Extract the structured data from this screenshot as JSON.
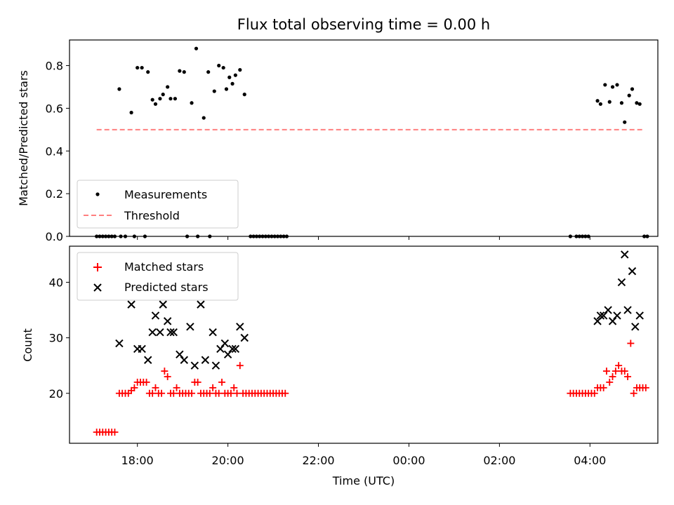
{
  "title": "Flux total observing time = 0.00 h",
  "chart_data": [
    {
      "type": "scatter",
      "panel": "top",
      "ylabel": "Matched/Predicted stars",
      "ylim": [
        0,
        0.92
      ],
      "yticks": [
        0.0,
        0.2,
        0.4,
        0.6,
        0.8
      ],
      "ytick_labels": [
        "0.0",
        "0.2",
        "0.4",
        "0.6",
        "0.8"
      ],
      "legend": {
        "placement": "lower-left",
        "entries": [
          "Measurements",
          "Threshold"
        ]
      },
      "series": [
        {
          "name": "Measurements",
          "marker": "dot",
          "color": "#000000",
          "points": [
            [
              "17:06",
              0
            ],
            [
              "17:10",
              0
            ],
            [
              "17:14",
              0
            ],
            [
              "17:18",
              0
            ],
            [
              "17:22",
              0
            ],
            [
              "17:26",
              0
            ],
            [
              "17:30",
              0
            ],
            [
              "17:36",
              0.69
            ],
            [
              "17:38",
              0
            ],
            [
              "17:44",
              0
            ],
            [
              "17:52",
              0.58
            ],
            [
              "17:56",
              0
            ],
            [
              "18:00",
              0.79
            ],
            [
              "18:06",
              0.79
            ],
            [
              "18:10",
              0
            ],
            [
              "18:14",
              0.77
            ],
            [
              "18:20",
              0.64
            ],
            [
              "18:24",
              0.62
            ],
            [
              "18:30",
              0.645
            ],
            [
              "18:34",
              0.665
            ],
            [
              "18:40",
              0.7
            ],
            [
              "18:44",
              0.645
            ],
            [
              "18:50",
              0.645
            ],
            [
              "18:56",
              0.775
            ],
            [
              "19:02",
              0.77
            ],
            [
              "19:06",
              0
            ],
            [
              "19:12",
              0.625
            ],
            [
              "19:18",
              0.88
            ],
            [
              "19:20",
              0
            ],
            [
              "19:28",
              0.555
            ],
            [
              "19:34",
              0.77
            ],
            [
              "19:36",
              0
            ],
            [
              "19:42",
              0.68
            ],
            [
              "19:48",
              0.8
            ],
            [
              "19:54",
              0.79
            ],
            [
              "19:58",
              0.69
            ],
            [
              "20:02",
              0.745
            ],
            [
              "20:06",
              0.715
            ],
            [
              "20:10",
              0.755
            ],
            [
              "20:16",
              0.78
            ],
            [
              "20:22",
              0.665
            ],
            [
              "20:30",
              0
            ],
            [
              "20:34",
              0
            ],
            [
              "20:38",
              0
            ],
            [
              "20:42",
              0
            ],
            [
              "20:46",
              0
            ],
            [
              "20:50",
              0
            ],
            [
              "20:54",
              0
            ],
            [
              "20:58",
              0
            ],
            [
              "21:02",
              0
            ],
            [
              "21:06",
              0
            ],
            [
              "21:10",
              0
            ],
            [
              "21:14",
              0
            ],
            [
              "21:18",
              0
            ],
            [
              "03:34",
              0
            ],
            [
              "03:42",
              0
            ],
            [
              "03:46",
              0
            ],
            [
              "03:50",
              0
            ],
            [
              "03:54",
              0
            ],
            [
              "03:58",
              0
            ],
            [
              "04:10",
              0.635
            ],
            [
              "04:14",
              0.62
            ],
            [
              "04:20",
              0.71
            ],
            [
              "04:26",
              0.63
            ],
            [
              "04:30",
              0.7
            ],
            [
              "04:36",
              0.71
            ],
            [
              "04:42",
              0.625
            ],
            [
              "04:46",
              0.535
            ],
            [
              "04:52",
              0.66
            ],
            [
              "04:56",
              0.69
            ],
            [
              "05:02",
              0.625
            ],
            [
              "05:06",
              0.62
            ],
            [
              "05:12",
              0
            ],
            [
              "05:16",
              0
            ]
          ]
        },
        {
          "name": "Threshold",
          "style": "dashed",
          "color": "#ff7f7f",
          "points": [
            [
              "17:06",
              0.5
            ],
            [
              "05:12",
              0.5
            ]
          ]
        }
      ]
    },
    {
      "type": "scatter",
      "panel": "bottom",
      "xlabel": "Time (UTC)",
      "ylabel": "Count",
      "xlim": [
        "16:30",
        "05:30"
      ],
      "xticks": [
        "18:00",
        "20:00",
        "22:00",
        "00:00",
        "02:00",
        "04:00"
      ],
      "ylim": [
        11,
        46.5
      ],
      "yticks": [
        20,
        30,
        40
      ],
      "ytick_labels": [
        "20",
        "30",
        "40"
      ],
      "legend": {
        "placement": "upper-left",
        "entries": [
          "Matched stars",
          "Predicted stars"
        ]
      },
      "series": [
        {
          "name": "Matched stars",
          "marker": "plus",
          "color": "#ff0000",
          "points": [
            [
              "17:06",
              13
            ],
            [
              "17:10",
              13
            ],
            [
              "17:14",
              13
            ],
            [
              "17:18",
              13
            ],
            [
              "17:22",
              13
            ],
            [
              "17:26",
              13
            ],
            [
              "17:30",
              13
            ],
            [
              "17:36",
              20
            ],
            [
              "17:40",
              20
            ],
            [
              "17:44",
              20
            ],
            [
              "17:48",
              20
            ],
            [
              "17:52",
              20.5
            ],
            [
              "17:56",
              21
            ],
            [
              "18:00",
              22
            ],
            [
              "18:04",
              22
            ],
            [
              "18:08",
              22
            ],
            [
              "18:12",
              22
            ],
            [
              "18:16",
              20
            ],
            [
              "18:20",
              20
            ],
            [
              "18:24",
              21
            ],
            [
              "18:28",
              20
            ],
            [
              "18:32",
              20
            ],
            [
              "18:36",
              24
            ],
            [
              "18:40",
              23
            ],
            [
              "18:44",
              20
            ],
            [
              "18:48",
              20
            ],
            [
              "18:52",
              21
            ],
            [
              "18:56",
              20
            ],
            [
              "19:00",
              20
            ],
            [
              "19:04",
              20
            ],
            [
              "19:08",
              20
            ],
            [
              "19:12",
              20
            ],
            [
              "19:16",
              22
            ],
            [
              "19:20",
              22
            ],
            [
              "19:24",
              20
            ],
            [
              "19:28",
              20
            ],
            [
              "19:32",
              20
            ],
            [
              "19:36",
              20
            ],
            [
              "19:40",
              21
            ],
            [
              "19:44",
              20
            ],
            [
              "19:48",
              20
            ],
            [
              "19:52",
              22
            ],
            [
              "19:56",
              20
            ],
            [
              "20:00",
              20
            ],
            [
              "20:04",
              20
            ],
            [
              "20:08",
              21
            ],
            [
              "20:12",
              20
            ],
            [
              "20:16",
              25
            ],
            [
              "20:20",
              20
            ],
            [
              "20:24",
              20
            ],
            [
              "20:28",
              20
            ],
            [
              "20:32",
              20
            ],
            [
              "20:36",
              20
            ],
            [
              "20:40",
              20
            ],
            [
              "20:44",
              20
            ],
            [
              "20:48",
              20
            ],
            [
              "20:52",
              20
            ],
            [
              "20:56",
              20
            ],
            [
              "21:00",
              20
            ],
            [
              "21:04",
              20
            ],
            [
              "21:08",
              20
            ],
            [
              "21:12",
              20
            ],
            [
              "21:16",
              20
            ],
            [
              "03:34",
              20
            ],
            [
              "03:38",
              20
            ],
            [
              "03:42",
              20
            ],
            [
              "03:46",
              20
            ],
            [
              "03:50",
              20
            ],
            [
              "03:54",
              20
            ],
            [
              "03:58",
              20
            ],
            [
              "04:02",
              20
            ],
            [
              "04:06",
              20
            ],
            [
              "04:10",
              21
            ],
            [
              "04:14",
              21
            ],
            [
              "04:18",
              21
            ],
            [
              "04:22",
              24
            ],
            [
              "04:26",
              22
            ],
            [
              "04:30",
              23
            ],
            [
              "04:34",
              24
            ],
            [
              "04:38",
              25
            ],
            [
              "04:42",
              24
            ],
            [
              "04:46",
              24
            ],
            [
              "04:50",
              23
            ],
            [
              "04:54",
              29
            ],
            [
              "04:58",
              20
            ],
            [
              "05:02",
              21
            ],
            [
              "05:06",
              21
            ],
            [
              "05:10",
              21
            ],
            [
              "05:14",
              21
            ]
          ]
        },
        {
          "name": "Predicted stars",
          "marker": "x",
          "color": "#000000",
          "points": [
            [
              "17:36",
              29
            ],
            [
              "17:52",
              36
            ],
            [
              "18:00",
              28
            ],
            [
              "18:06",
              28
            ],
            [
              "18:14",
              26
            ],
            [
              "18:20",
              31
            ],
            [
              "18:24",
              34
            ],
            [
              "18:30",
              31
            ],
            [
              "18:34",
              36
            ],
            [
              "18:40",
              33
            ],
            [
              "18:44",
              31
            ],
            [
              "18:48",
              31
            ],
            [
              "18:56",
              27
            ],
            [
              "19:02",
              26
            ],
            [
              "19:10",
              32
            ],
            [
              "19:16",
              25
            ],
            [
              "19:24",
              36
            ],
            [
              "19:30",
              26
            ],
            [
              "19:40",
              31
            ],
            [
              "19:44",
              25
            ],
            [
              "19:50",
              28
            ],
            [
              "19:56",
              29
            ],
            [
              "20:00",
              27
            ],
            [
              "20:06",
              28
            ],
            [
              "20:10",
              28
            ],
            [
              "20:16",
              32
            ],
            [
              "20:22",
              30
            ],
            [
              "04:10",
              33
            ],
            [
              "04:14",
              34
            ],
            [
              "04:18",
              34
            ],
            [
              "04:24",
              35
            ],
            [
              "04:30",
              33
            ],
            [
              "04:36",
              34
            ],
            [
              "04:42",
              40
            ],
            [
              "04:46",
              45
            ],
            [
              "04:50",
              35
            ],
            [
              "04:56",
              42
            ],
            [
              "05:00",
              32
            ],
            [
              "05:06",
              34
            ]
          ]
        }
      ]
    }
  ]
}
